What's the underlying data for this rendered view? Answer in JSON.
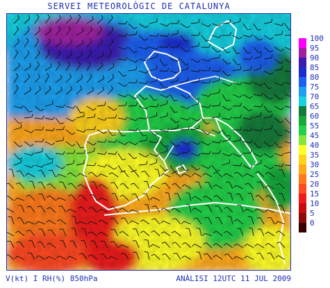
{
  "header": {
    "title": "SERVEI METEOROLÒGIC DE CATALUNYA"
  },
  "footer": {
    "left": "V(kt) I RH(%) 850hPa",
    "right": "ANÀLISI 12UTC 11 JUL 2009"
  },
  "legend": {
    "entries": [
      {
        "label": "100",
        "color": "#ff00ff"
      },
      {
        "label": "95",
        "color": "#a020a0"
      },
      {
        "label": "90",
        "color": "#3a1ab0"
      },
      {
        "label": "85",
        "color": "#1a2cd0"
      },
      {
        "label": "80",
        "color": "#1e5ef0"
      },
      {
        "label": "75",
        "color": "#1ea0f0"
      },
      {
        "label": "70",
        "color": "#18d0e0"
      },
      {
        "label": "65",
        "color": "#127a3a"
      },
      {
        "label": "60",
        "color": "#16a83a"
      },
      {
        "label": "55",
        "color": "#22d04a"
      },
      {
        "label": "45",
        "color": "#86e63a"
      },
      {
        "label": "40",
        "color": "#ffff28"
      },
      {
        "label": "35",
        "color": "#ffd21a"
      },
      {
        "label": "30",
        "color": "#ffa81a"
      },
      {
        "label": "25",
        "color": "#ff7a1a"
      },
      {
        "label": "20",
        "color": "#ff4a22"
      },
      {
        "label": "15",
        "color": "#ee1a1a"
      },
      {
        "label": "10",
        "color": "#c80a0a"
      },
      {
        "label": "5",
        "color": "#8a0a0a"
      },
      {
        "label": "0",
        "color": "#3a0000"
      }
    ]
  }
}
